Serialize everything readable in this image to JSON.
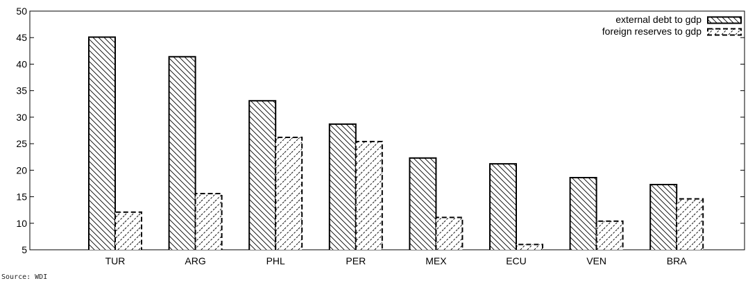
{
  "source_note": "Source: WDI",
  "chart_data": {
    "type": "bar",
    "title": "",
    "xlabel": "",
    "ylabel": "",
    "ylim": [
      5,
      50
    ],
    "yticks": [
      5,
      10,
      15,
      20,
      25,
      30,
      35,
      40,
      45,
      50
    ],
    "categories": [
      "TUR",
      "ARG",
      "PHL",
      "PER",
      "MEX",
      "ECU",
      "VEN",
      "BRA"
    ],
    "series": [
      {
        "name": "external debt to gdp",
        "pattern": "hatch-back-diagonal-solid",
        "values": [
          45.1,
          41.4,
          33.1,
          28.7,
          22.3,
          21.2,
          18.6,
          17.3
        ]
      },
      {
        "name": "foreign reserves to gdp",
        "pattern": "hatch-forward-diagonal-dashed",
        "values": [
          12.1,
          15.6,
          26.2,
          25.4,
          11.1,
          6.0,
          10.4,
          14.6
        ]
      }
    ],
    "grid": false,
    "legend_position": "top-right",
    "colors": {
      "stroke": "#000000",
      "background": "#ffffff"
    }
  }
}
